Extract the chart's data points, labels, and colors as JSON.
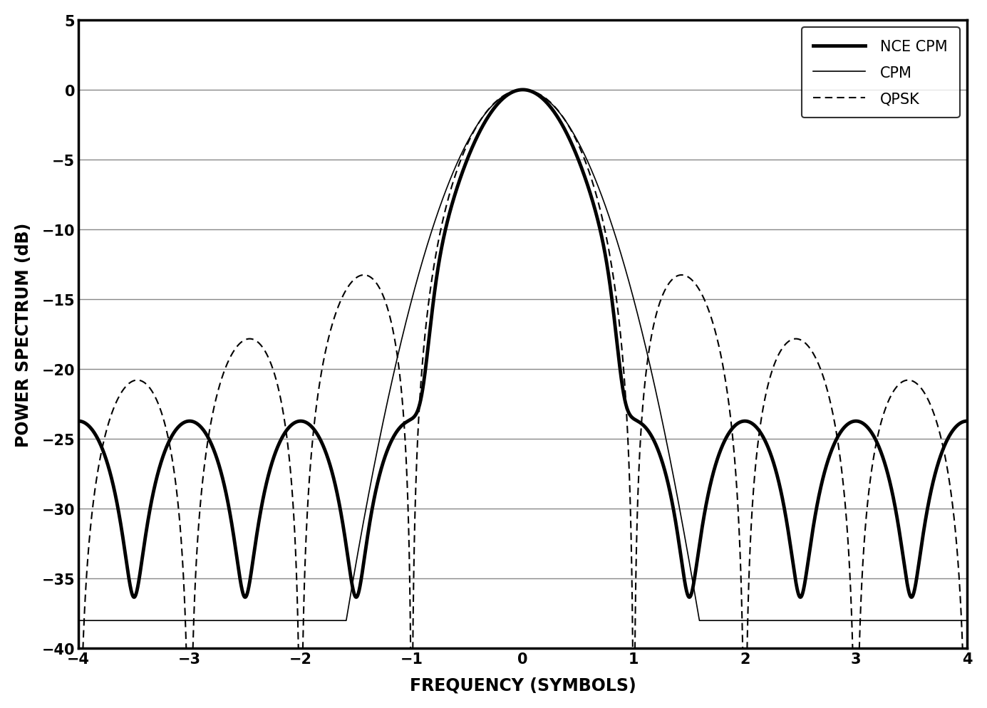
{
  "title": "",
  "xlabel": "FREQUENCY (SYMBOLS)",
  "ylabel": "POWER SPECTRUM (dB)",
  "xlim": [
    -4,
    4
  ],
  "ylim": [
    -40,
    5
  ],
  "yticks": [
    5,
    0,
    -5,
    -10,
    -15,
    -20,
    -25,
    -30,
    -35,
    -40
  ],
  "xticks": [
    -4,
    -3,
    -2,
    -1,
    0,
    1,
    2,
    3,
    4
  ],
  "legend_labels": [
    "NCE CPM",
    "CPM",
    "QPSK"
  ],
  "background_color": "#ffffff",
  "grid_color": "#888888"
}
